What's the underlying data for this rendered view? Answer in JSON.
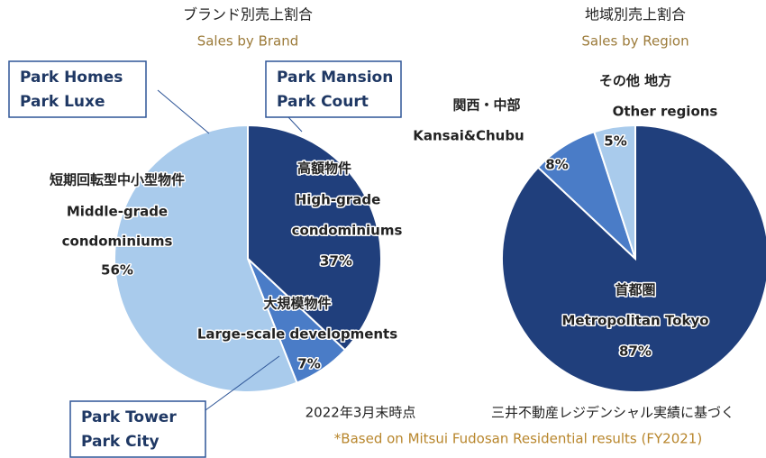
{
  "chart_data": [
    {
      "type": "pie",
      "title": "ブランド別売上割合",
      "subtitle": "Sales by Brand",
      "labels": [
        [
          "高額物件",
          "High-grade",
          "condominiums"
        ],
        [
          "大規模物件",
          "Large-scale developments"
        ],
        [
          "短期回転型中小型物件",
          "Middle-grade",
          "condominiums"
        ]
      ],
      "values": [
        37,
        7,
        56
      ],
      "value_labels": [
        "37%",
        "7%",
        "56%"
      ],
      "colors": [
        "#203f7c",
        "#4a7cc7",
        "#a9cbec"
      ],
      "annotations": [
        [
          "Park Mansion",
          "Park Court"
        ],
        [
          "Park Tower",
          "Park City"
        ],
        [
          "Park Homes",
          "Park Luxe"
        ]
      ]
    },
    {
      "type": "pie",
      "title": "地域別売上割合",
      "subtitle": "Sales by Region",
      "labels": [
        [
          "首都圏",
          "Metropolitan Tokyo"
        ],
        [
          "関西・中部",
          "Kansai&Chubu"
        ],
        [
          "その他 地方",
          "Other regions"
        ]
      ],
      "values": [
        87,
        8,
        5
      ],
      "value_labels": [
        "87%",
        "8%",
        "5%"
      ],
      "colors": [
        "#203f7c",
        "#4a7cc7",
        "#a9cbec"
      ]
    }
  ],
  "notes": [
    "2022年3月末時点",
    "三井不動産レジデンシャル実績に基づく"
  ],
  "footnote": "*Based on Mitsui Fudosan Residential results (FY2021)"
}
